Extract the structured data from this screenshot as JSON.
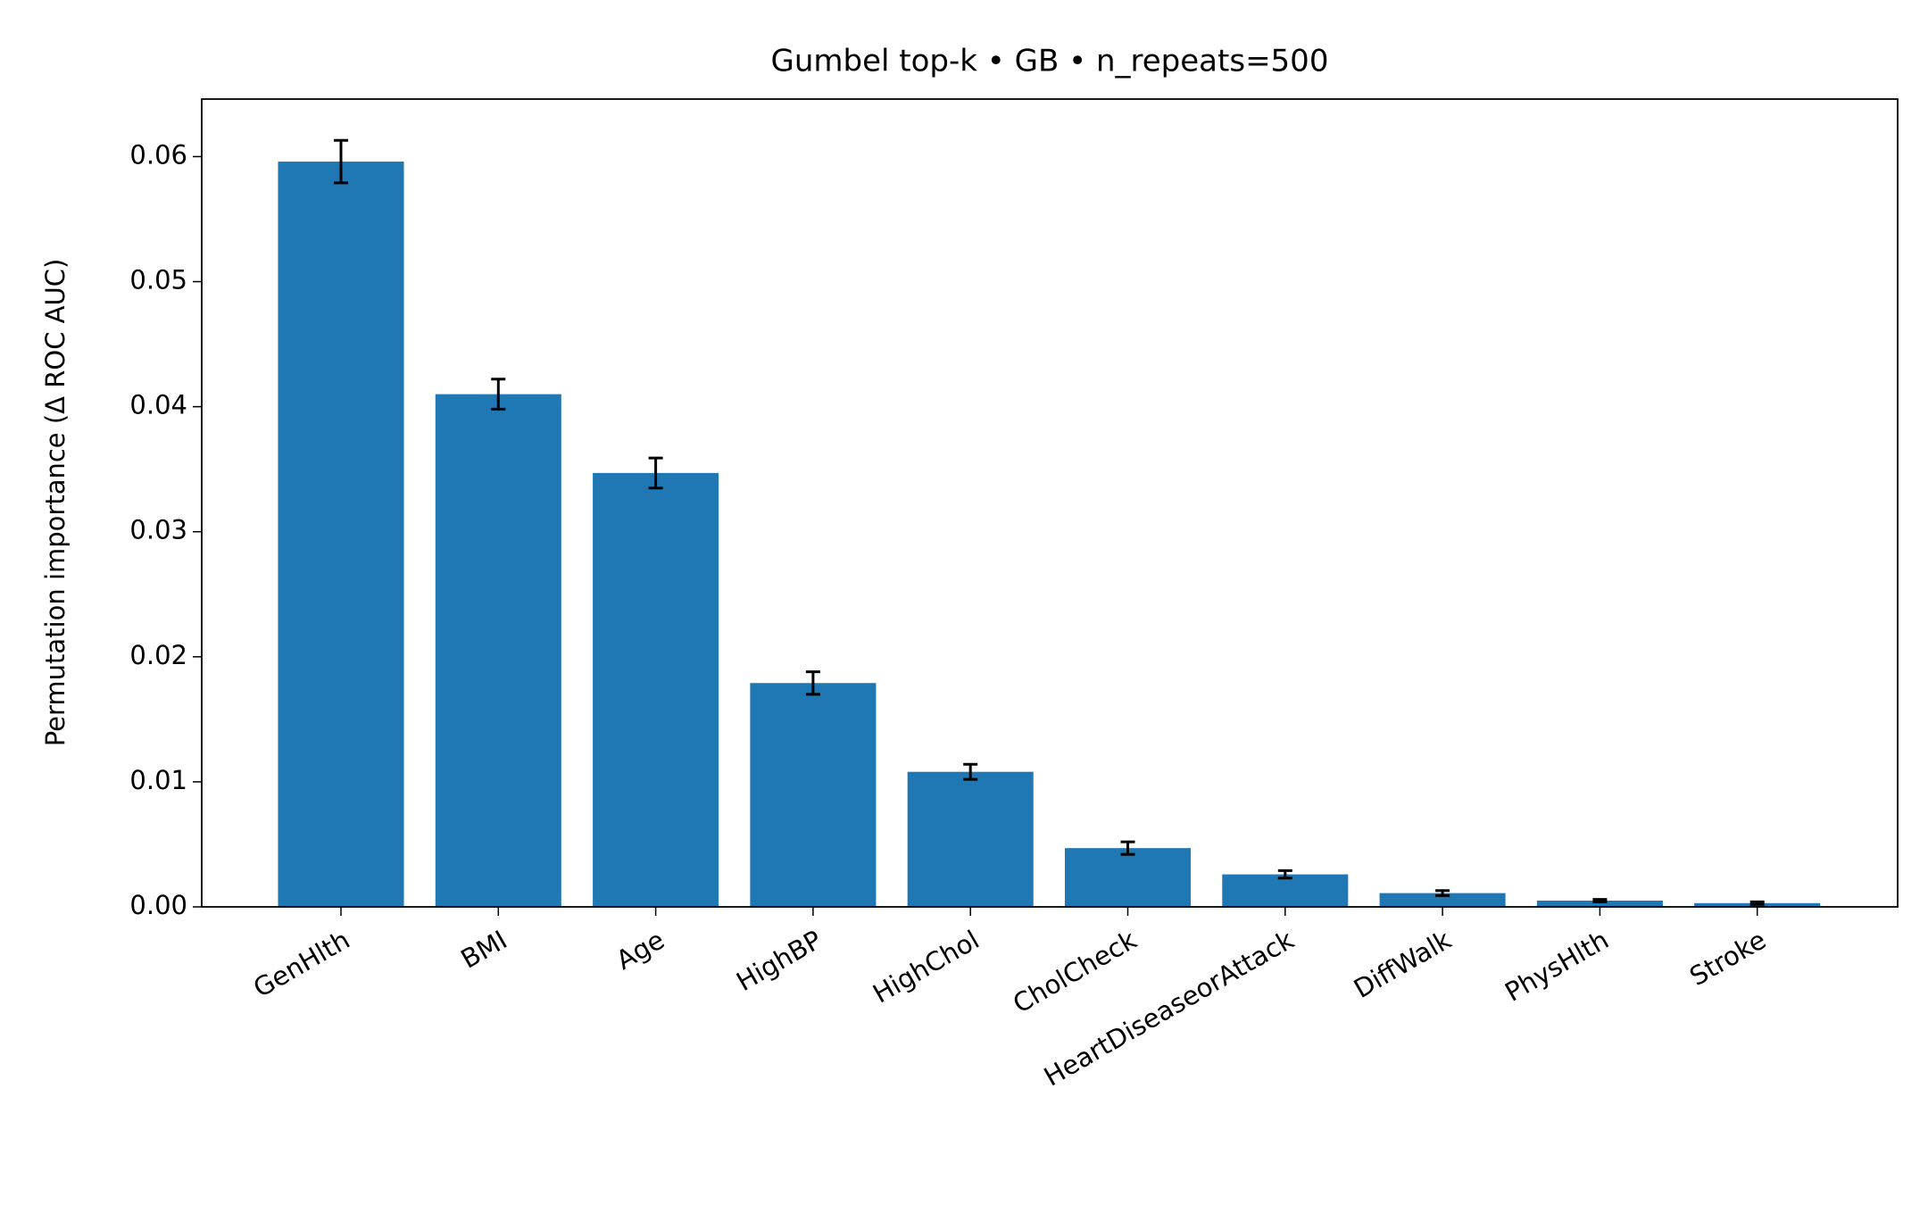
{
  "chart_data": {
    "type": "bar",
    "title": "Gumbel top-k • GB • n_repeats=500",
    "y_label": "Permutation importance (Δ ROC AUC)",
    "categories": [
      "GenHlth",
      "BMI",
      "Age",
      "HighBP",
      "HighChol",
      "CholCheck",
      "HeartDiseaseorAttack",
      "DiffWalk",
      "PhysHlth",
      "Stroke"
    ],
    "values": [
      0.0596,
      0.041,
      0.0347,
      0.0179,
      0.0108,
      0.0047,
      0.0026,
      0.0011,
      0.0005,
      0.0003
    ],
    "errors": [
      0.0017,
      0.0012,
      0.0012,
      0.0009,
      0.0006,
      0.0005,
      0.0003,
      0.0002,
      0.0001,
      0.0001
    ],
    "color": "#1f77b4",
    "ylim": [
      0,
      0.0646
    ],
    "yticks": [
      {
        "value": 0,
        "label": "0.00"
      },
      {
        "value": 0.01,
        "label": "0.01"
      },
      {
        "value": 0.02,
        "label": "0.02"
      },
      {
        "value": 0.03,
        "label": "0.03"
      },
      {
        "value": 0.04,
        "label": "0.04"
      },
      {
        "value": 0.05,
        "label": "0.05"
      },
      {
        "value": 0.06,
        "label": "0.06"
      }
    ],
    "grid": false
  }
}
